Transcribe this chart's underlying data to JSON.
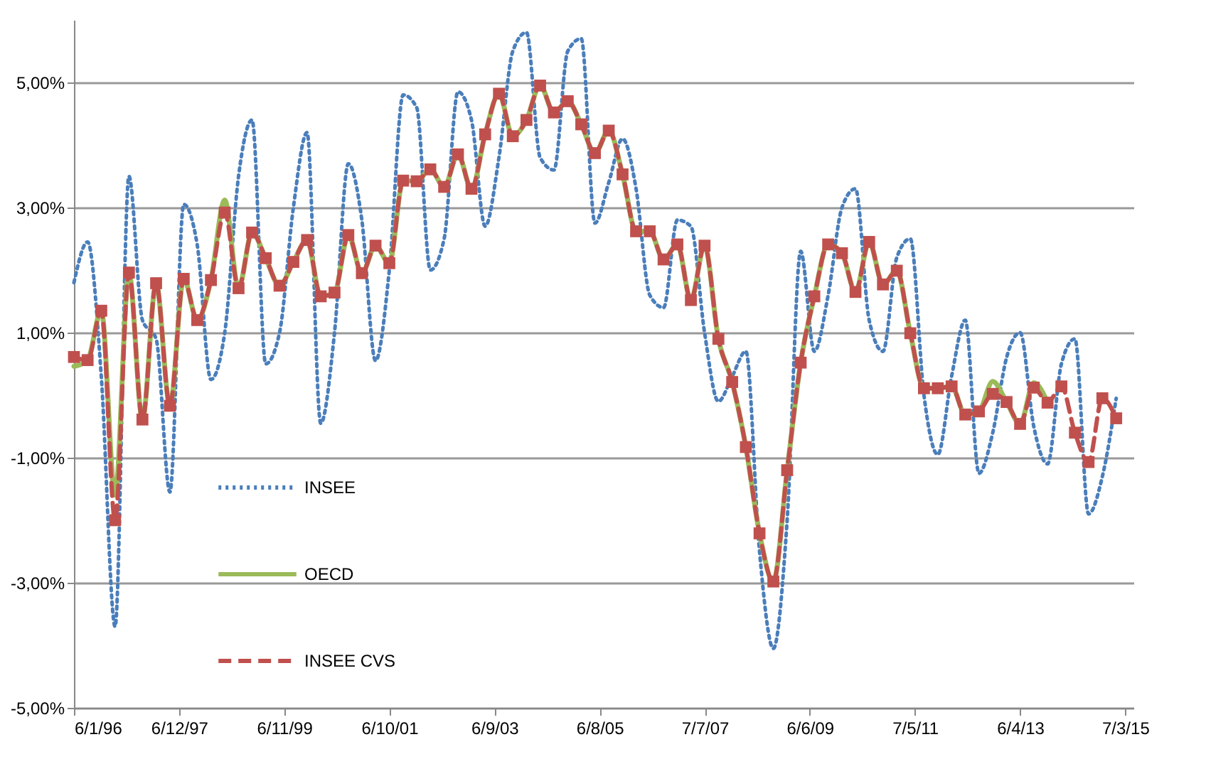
{
  "chart_data": {
    "type": "line",
    "x": [
      "1996-01-06",
      "1996-04-06",
      "1996-07-06",
      "1996-10-06",
      "1997-01-06",
      "1997-04-06",
      "1997-07-06",
      "1997-10-06",
      "1998-01-06",
      "1998-04-06",
      "1998-07-06",
      "1998-10-06",
      "1999-01-06",
      "1999-04-06",
      "1999-07-06",
      "1999-10-06",
      "2000-01-06",
      "2000-04-06",
      "2000-07-06",
      "2000-10-06",
      "2001-01-06",
      "2001-04-06",
      "2001-07-06",
      "2001-10-06",
      "2002-01-06",
      "2002-04-06",
      "2002-07-06",
      "2002-10-06",
      "2003-01-06",
      "2003-04-06",
      "2003-07-06",
      "2003-10-06",
      "2004-01-06",
      "2004-04-06",
      "2004-07-06",
      "2004-10-06",
      "2005-01-06",
      "2005-04-06",
      "2005-07-06",
      "2005-10-06",
      "2006-01-06",
      "2006-04-06",
      "2006-07-06",
      "2006-10-06",
      "2007-01-06",
      "2007-04-06",
      "2007-07-06",
      "2007-10-06",
      "2008-01-06",
      "2008-04-06",
      "2008-07-06",
      "2008-10-06",
      "2009-01-06",
      "2009-04-06",
      "2009-07-06",
      "2009-10-06",
      "2010-01-06",
      "2010-04-06",
      "2010-07-06",
      "2010-10-06",
      "2011-01-06",
      "2011-04-06",
      "2011-07-06",
      "2011-10-06",
      "2012-01-06",
      "2012-04-06",
      "2012-07-06",
      "2012-10-06",
      "2013-01-06",
      "2013-04-06",
      "2013-07-06",
      "2013-10-06",
      "2014-01-06",
      "2014-04-06",
      "2014-07-06",
      "2014-10-06",
      "2015-01-06"
    ],
    "series": [
      {
        "name": "INSEE",
        "color": "#4a7ebb",
        "line_style": "dotted",
        "values": [
          1.8,
          2.45,
          0.3,
          -3.7,
          3.5,
          1.2,
          0.9,
          -1.55,
          3.05,
          2.4,
          0.25,
          1.0,
          3.5,
          4.4,
          0.5,
          1.0,
          3.0,
          4.2,
          -0.45,
          1.0,
          3.7,
          2.8,
          0.55,
          2.0,
          4.8,
          4.6,
          2.0,
          2.5,
          4.85,
          4.4,
          2.7,
          3.8,
          5.5,
          5.8,
          3.8,
          3.6,
          5.5,
          5.7,
          2.75,
          3.4,
          4.1,
          3.3,
          1.6,
          1.4,
          2.8,
          2.7,
          1.0,
          -0.1,
          0.3,
          0.7,
          -2.5,
          -4.05,
          -2.0,
          2.3,
          0.7,
          1.6,
          3.0,
          3.3,
          1.2,
          0.7,
          2.2,
          2.5,
          0.0,
          -0.95,
          0.3,
          1.2,
          -1.25,
          -0.6,
          0.6,
          1.0,
          -0.5,
          -1.1,
          0.5,
          0.9,
          -1.9,
          -1.3,
          -0.05
        ]
      },
      {
        "name": "OECD",
        "color": "#9bbb59",
        "line_style": "solid",
        "values": [
          0.46,
          0.56,
          1.35,
          -1.6,
          1.96,
          -0.39,
          1.79,
          -0.17,
          1.86,
          1.2,
          1.84,
          3.12,
          1.71,
          2.6,
          2.19,
          1.75,
          2.13,
          2.48,
          1.58,
          1.64,
          2.56,
          1.95,
          2.39,
          2.11,
          3.43,
          3.42,
          3.61,
          3.33,
          3.85,
          3.3,
          4.17,
          4.82,
          4.14,
          4.4,
          4.95,
          4.52,
          4.7,
          4.33,
          3.87,
          4.23,
          3.53,
          2.62,
          2.62,
          2.17,
          2.41,
          1.52,
          2.39,
          0.9,
          0.21,
          -0.83,
          -2.21,
          -2.98,
          -1.2,
          0.52,
          1.58,
          2.41,
          2.27,
          1.65,
          2.45,
          1.77,
          1.99,
          0.99,
          0.11,
          0.11,
          0.14,
          -0.31,
          -0.26,
          0.22,
          -0.11,
          -0.46,
          0.2,
          -0.12,
          null,
          null,
          null,
          null,
          null
        ]
      },
      {
        "name": "INSEE CVS",
        "color": "#c0504d",
        "line_style": "dashed",
        "marker": "square",
        "values": [
          0.61,
          0.56,
          1.35,
          -2.0,
          1.96,
          -0.39,
          1.79,
          -0.17,
          1.86,
          1.2,
          1.84,
          2.92,
          1.71,
          2.6,
          2.19,
          1.75,
          2.13,
          2.48,
          1.58,
          1.64,
          2.56,
          1.95,
          2.39,
          2.11,
          3.43,
          3.42,
          3.61,
          3.33,
          3.85,
          3.3,
          4.17,
          4.82,
          4.14,
          4.4,
          4.95,
          4.52,
          4.7,
          4.33,
          3.87,
          4.23,
          3.53,
          2.62,
          2.62,
          2.17,
          2.41,
          1.52,
          2.39,
          0.9,
          0.21,
          -0.83,
          -2.21,
          -2.98,
          -1.2,
          0.52,
          1.58,
          2.41,
          2.27,
          1.65,
          2.45,
          1.77,
          1.99,
          0.99,
          0.11,
          0.11,
          0.14,
          -0.31,
          -0.26,
          0.02,
          -0.11,
          -0.46,
          0.12,
          -0.12,
          0.14,
          -0.6,
          -1.07,
          -0.05,
          -0.37
        ]
      }
    ],
    "xlim": [
      "1996-01-06",
      "2015-05-01"
    ],
    "xticks": [
      {
        "value": "1996-01-06",
        "label": "6/1/96"
      },
      {
        "value": "1997-12-06",
        "label": "6/12/97"
      },
      {
        "value": "1999-11-06",
        "label": "6/11/99"
      },
      {
        "value": "2001-10-06",
        "label": "6/10/01"
      },
      {
        "value": "2003-09-06",
        "label": "6/9/03"
      },
      {
        "value": "2005-08-06",
        "label": "6/8/05"
      },
      {
        "value": "2007-07-07",
        "label": "7/7/07"
      },
      {
        "value": "2009-06-06",
        "label": "6/6/09"
      },
      {
        "value": "2011-05-07",
        "label": "7/5/11"
      },
      {
        "value": "2013-04-06",
        "label": "6/4/13"
      },
      {
        "value": "2015-03-07",
        "label": "7/3/15"
      }
    ],
    "ylim": [
      -5,
      6
    ],
    "yticks": [
      {
        "value": -5,
        "label": "-5,00%"
      },
      {
        "value": -3,
        "label": "-3,00%"
      },
      {
        "value": -1,
        "label": "-1,00%"
      },
      {
        "value": 1,
        "label": "1,00%"
      },
      {
        "value": 3,
        "label": "3,00%"
      },
      {
        "value": 5,
        "label": "5,00%"
      }
    ],
    "grid": "y",
    "legend": "bottom left"
  }
}
